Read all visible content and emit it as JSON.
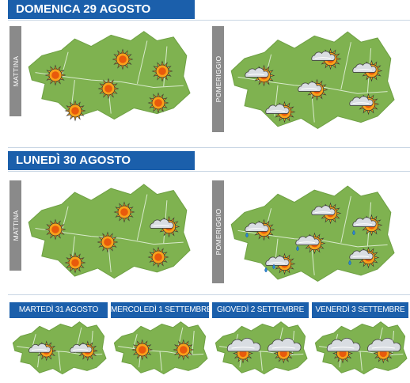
{
  "days": {
    "d1": {
      "title": "DOMENICA 29 AGOSTO",
      "morning_label": "MATTINA",
      "afternoon_label": "POMERIGGIO"
    },
    "d2": {
      "title": "LUNEDÌ 30 AGOSTO",
      "morning_label": "MATTINA",
      "afternoon_label": "POMERIGGIO"
    }
  },
  "outlook": [
    {
      "label": "MARTEDÌ 31 AGOSTO",
      "icons": [
        "sun-cloud",
        "sun-cloud"
      ]
    },
    {
      "label": "MERCOLEDÌ 1 SETTEMBRE",
      "icons": [
        "sun",
        "sun"
      ]
    },
    {
      "label": "GIOVEDÌ 2 SETTEMBRE",
      "icons": [
        "cloud-sun",
        "cloud-sun"
      ]
    },
    {
      "label": "VENERDÌ 3 SETTEMBRE",
      "icons": [
        "cloud-sun",
        "cloud-sun"
      ]
    }
  ],
  "colors": {
    "header": "#1b5fab",
    "map_fill": "#7fb250",
    "tab": "#8a8a8a",
    "sun": "#f7a21b",
    "sun_core": "#e85a0c"
  }
}
